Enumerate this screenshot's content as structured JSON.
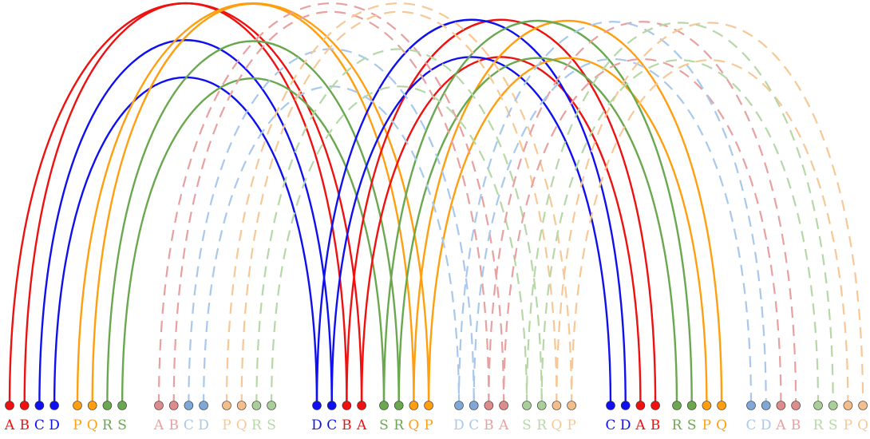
{
  "colors": {
    "red": "#ef1010",
    "blue": "#0f10ef",
    "orange": "#ff9f10",
    "green": "#6aa84f",
    "red_light": "#e8a0a0",
    "blue_light": "#a8c8ec",
    "orange_light": "#f7c896",
    "green_light": "#b6d8a6",
    "node_red_light": "#de8b8b",
    "node_blue_light": "#7fa7d8",
    "node_orange_light": "#f4bd8c",
    "node_green_light": "#a8cf98"
  },
  "groups": [
    {
      "id": "g1",
      "letters": [
        {
          "label": "A",
          "color": "red"
        },
        {
          "label": "B",
          "color": "red"
        },
        {
          "label": "C",
          "color": "blue"
        },
        {
          "label": "D",
          "color": "blue"
        }
      ]
    },
    {
      "id": "g2",
      "letters": [
        {
          "label": "P",
          "color": "orange"
        },
        {
          "label": "Q",
          "color": "orange"
        },
        {
          "label": "R",
          "color": "green"
        },
        {
          "label": "S",
          "color": "green"
        }
      ]
    },
    {
      "id": "g3",
      "letters": [
        {
          "label": "A",
          "color": "red_light"
        },
        {
          "label": "B",
          "color": "red_light"
        },
        {
          "label": "C",
          "color": "blue_light"
        },
        {
          "label": "D",
          "color": "blue_light"
        }
      ]
    },
    {
      "id": "g4",
      "letters": [
        {
          "label": "P",
          "color": "orange_light"
        },
        {
          "label": "Q",
          "color": "orange_light"
        },
        {
          "label": "R",
          "color": "green_light"
        },
        {
          "label": "S",
          "color": "green_light"
        }
      ]
    },
    {
      "id": "g5",
      "letters": [
        {
          "label": "D",
          "color": "blue"
        },
        {
          "label": "C",
          "color": "blue"
        },
        {
          "label": "B",
          "color": "red"
        },
        {
          "label": "A",
          "color": "red"
        }
      ]
    },
    {
      "id": "g6",
      "letters": [
        {
          "label": "S",
          "color": "green"
        },
        {
          "label": "R",
          "color": "green"
        },
        {
          "label": "Q",
          "color": "orange"
        },
        {
          "label": "P",
          "color": "orange"
        }
      ]
    },
    {
      "id": "g7",
      "letters": [
        {
          "label": "D",
          "color": "blue_light"
        },
        {
          "label": "C",
          "color": "blue_light"
        },
        {
          "label": "B",
          "color": "red_light"
        },
        {
          "label": "A",
          "color": "red_light"
        }
      ]
    },
    {
      "id": "g8",
      "letters": [
        {
          "label": "S",
          "color": "green_light"
        },
        {
          "label": "R",
          "color": "green_light"
        },
        {
          "label": "Q",
          "color": "orange_light"
        },
        {
          "label": "P",
          "color": "orange_light"
        }
      ]
    },
    {
      "id": "g9",
      "letters": [
        {
          "label": "C",
          "color": "blue"
        },
        {
          "label": "D",
          "color": "blue"
        },
        {
          "label": "A",
          "color": "red"
        },
        {
          "label": "B",
          "color": "red"
        }
      ]
    },
    {
      "id": "g10",
      "letters": [
        {
          "label": "R",
          "color": "green"
        },
        {
          "label": "S",
          "color": "green"
        },
        {
          "label": "P",
          "color": "orange"
        },
        {
          "label": "Q",
          "color": "orange"
        }
      ]
    },
    {
      "id": "g11",
      "letters": [
        {
          "label": "C",
          "color": "blue_light"
        },
        {
          "label": "D",
          "color": "blue_light"
        },
        {
          "label": "A",
          "color": "red_light"
        },
        {
          "label": "B",
          "color": "red_light"
        }
      ]
    },
    {
      "id": "g12",
      "letters": [
        {
          "label": "R",
          "color": "green_light"
        },
        {
          "label": "S",
          "color": "green_light"
        },
        {
          "label": "P",
          "color": "orange_light"
        },
        {
          "label": "Q",
          "color": "orange_light"
        }
      ]
    }
  ],
  "arcs": [
    {
      "from": "g1.0",
      "to": "g5.3",
      "color": "red",
      "dashed": false
    },
    {
      "from": "g1.1",
      "to": "g5.2",
      "color": "red",
      "dashed": false
    },
    {
      "from": "g1.2",
      "to": "g5.1",
      "color": "blue",
      "dashed": false
    },
    {
      "from": "g1.3",
      "to": "g5.0",
      "color": "blue",
      "dashed": false
    },
    {
      "from": "g2.0",
      "to": "g6.3",
      "color": "orange",
      "dashed": false
    },
    {
      "from": "g2.1",
      "to": "g6.2",
      "color": "orange",
      "dashed": false
    },
    {
      "from": "g2.2",
      "to": "g6.1",
      "color": "green",
      "dashed": false
    },
    {
      "from": "g2.3",
      "to": "g6.0",
      "color": "green",
      "dashed": false
    },
    {
      "from": "g5.3",
      "to": "g9.2",
      "color": "red",
      "dashed": false
    },
    {
      "from": "g5.2",
      "to": "g9.3",
      "color": "red",
      "dashed": false
    },
    {
      "from": "g5.1",
      "to": "g9.0",
      "color": "blue",
      "dashed": false
    },
    {
      "from": "g5.0",
      "to": "g9.1",
      "color": "blue",
      "dashed": false
    },
    {
      "from": "g6.3",
      "to": "g10.2",
      "color": "orange",
      "dashed": false
    },
    {
      "from": "g6.2",
      "to": "g10.3",
      "color": "orange",
      "dashed": false
    },
    {
      "from": "g6.1",
      "to": "g10.0",
      "color": "green",
      "dashed": false
    },
    {
      "from": "g6.0",
      "to": "g10.1",
      "color": "green",
      "dashed": false
    },
    {
      "from": "g3.0",
      "to": "g7.3",
      "color": "red_light",
      "dashed": true
    },
    {
      "from": "g3.1",
      "to": "g7.2",
      "color": "red_light",
      "dashed": true
    },
    {
      "from": "g3.2",
      "to": "g7.1",
      "color": "blue_light",
      "dashed": true
    },
    {
      "from": "g3.3",
      "to": "g7.0",
      "color": "blue_light",
      "dashed": true
    },
    {
      "from": "g4.0",
      "to": "g8.3",
      "color": "orange_light",
      "dashed": true
    },
    {
      "from": "g4.1",
      "to": "g8.2",
      "color": "orange_light",
      "dashed": true
    },
    {
      "from": "g4.2",
      "to": "g8.1",
      "color": "green_light",
      "dashed": true
    },
    {
      "from": "g4.3",
      "to": "g8.0",
      "color": "green_light",
      "dashed": true
    },
    {
      "from": "g7.3",
      "to": "g11.2",
      "color": "red_light",
      "dashed": true
    },
    {
      "from": "g7.2",
      "to": "g11.3",
      "color": "red_light",
      "dashed": true
    },
    {
      "from": "g7.1",
      "to": "g11.0",
      "color": "blue_light",
      "dashed": true
    },
    {
      "from": "g7.0",
      "to": "g11.1",
      "color": "blue_light",
      "dashed": true
    },
    {
      "from": "g8.3",
      "to": "g12.2",
      "color": "orange_light",
      "dashed": true
    },
    {
      "from": "g8.2",
      "to": "g12.3",
      "color": "orange_light",
      "dashed": true
    },
    {
      "from": "g8.1",
      "to": "g12.0",
      "color": "green_light",
      "dashed": true
    },
    {
      "from": "g8.0",
      "to": "g12.1",
      "color": "green_light",
      "dashed": true
    }
  ]
}
